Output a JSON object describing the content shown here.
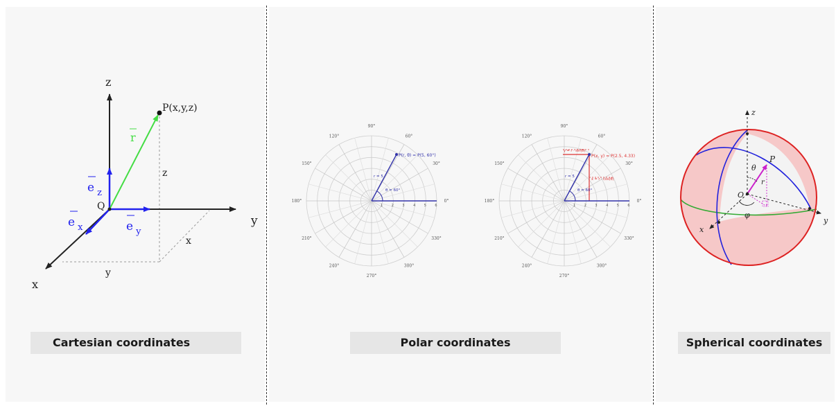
{
  "captions": {
    "cartesian": "Cartesian coordinates",
    "polar": "Polar coordinates",
    "spherical": "Spherical coordinates"
  },
  "cartesian": {
    "z_axis": "z",
    "y_axis": "y",
    "x_axis": "x",
    "origin": "Q",
    "point": "P(x,y,z)",
    "vector": "r",
    "unit_z": "e",
    "unit_z_sub": "z",
    "unit_x": "e",
    "unit_x_sub": "x",
    "unit_y": "e",
    "unit_y_sub": "y",
    "proj_z": "z",
    "proj_x": "x",
    "proj_y": "y",
    "colors": {
      "vector": "#44dd44",
      "unit": "#2222ee",
      "axis": "#222222"
    }
  },
  "polar_a": {
    "angles": [
      "0°",
      "30°",
      "60°",
      "90°",
      "120°",
      "150°",
      "180°",
      "210°",
      "240°",
      "270°",
      "300°",
      "330°"
    ],
    "radii": [
      "1",
      "2",
      "3",
      "4",
      "5",
      "6"
    ],
    "point_label": "P(r, θ) = P(5, 60°)",
    "r_label": "r = 5",
    "theta_label": "θ = 60°",
    "colors": {
      "point": "#3333aa"
    }
  },
  "polar_b": {
    "angles": [
      "0°",
      "30°",
      "60°",
      "90°",
      "120°",
      "150°",
      "180°",
      "210°",
      "240°",
      "270°",
      "300°",
      "330°"
    ],
    "radii": [
      "1",
      "2",
      "3",
      "4",
      "5",
      "6"
    ],
    "point_label": "P(x, y) = P(2.5, 4.33)",
    "r_label": "r = 5",
    "theta_label": "θ = 60°",
    "y_label": "y = r · sin(θ)",
    "x_label": "x = r · cos(θ)",
    "colors": {
      "point": "#3333aa",
      "projection": "#dd3333"
    }
  },
  "spherical": {
    "z_axis": "z",
    "y_axis": "y",
    "x_axis": "x",
    "origin": "O",
    "point": "P",
    "r": "r",
    "theta": "θ",
    "phi": "φ",
    "colors": {
      "sphere_outline": "#dd2222",
      "meridian": "#2222dd",
      "equator": "#33aa33",
      "fill": "#f6c8c8",
      "vector": "#cc22cc"
    }
  }
}
